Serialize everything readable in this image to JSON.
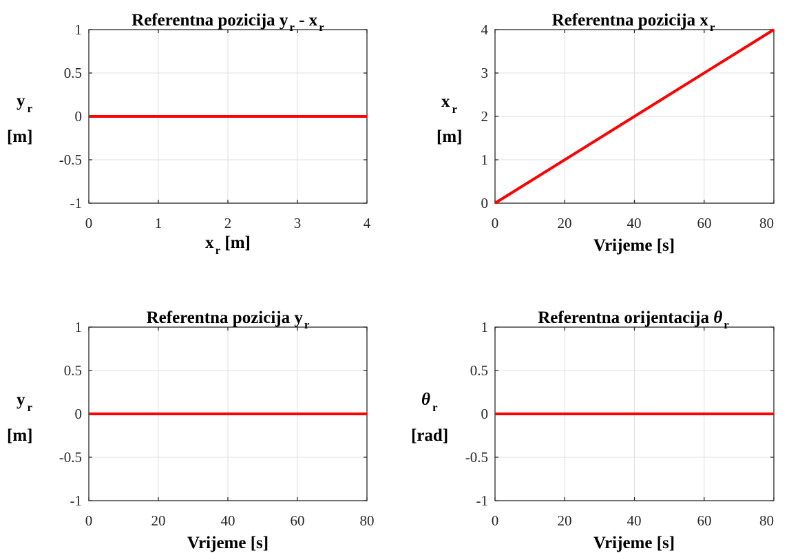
{
  "chart_data": [
    {
      "type": "line",
      "title": {
        "main": "Referentna pozicija y",
        "s1": "r",
        "mid": " - x",
        "s2": "r"
      },
      "xlabel": {
        "main": "x",
        "sub": "r",
        "unit": " [m]"
      },
      "ylabel": {
        "sym": "y",
        "sub": "r",
        "unit": "[m]"
      },
      "xlim": [
        0,
        4
      ],
      "ylim": [
        -1,
        1
      ],
      "xticks": [
        "0",
        "1",
        "2",
        "3",
        "4"
      ],
      "yticks": [
        "-1",
        "-0.5",
        "0",
        "0.5",
        "1"
      ],
      "grid": true,
      "series": [
        {
          "color": "#ff0000",
          "x": [
            0,
            4
          ],
          "y": [
            0,
            0
          ]
        }
      ]
    },
    {
      "type": "line",
      "title": {
        "main": "Referentna pozicija x",
        "s1": "r"
      },
      "xlabel": {
        "main": "Vrijeme [s]"
      },
      "ylabel": {
        "sym": "x",
        "sub": "r",
        "unit": "[m]"
      },
      "xlim": [
        0,
        80
      ],
      "ylim": [
        0,
        4
      ],
      "xticks": [
        "0",
        "20",
        "40",
        "60",
        "80"
      ],
      "yticks": [
        "0",
        "1",
        "2",
        "3",
        "4"
      ],
      "grid": true,
      "series": [
        {
          "color": "#ff0000",
          "x": [
            0,
            80
          ],
          "y": [
            0,
            4
          ]
        }
      ]
    },
    {
      "type": "line",
      "title": {
        "main": "Referentna pozicija y",
        "s1": "r"
      },
      "xlabel": {
        "main": "Vrijeme [s]"
      },
      "ylabel": {
        "sym": "y",
        "sub": "r",
        "unit": "[m]"
      },
      "xlim": [
        0,
        80
      ],
      "ylim": [
        -1,
        1
      ],
      "xticks": [
        "0",
        "20",
        "40",
        "60",
        "80"
      ],
      "yticks": [
        "-1",
        "-0.5",
        "0",
        "0.5",
        "1"
      ],
      "grid": true,
      "series": [
        {
          "color": "#ff0000",
          "x": [
            0,
            80
          ],
          "y": [
            0,
            0
          ]
        }
      ]
    },
    {
      "type": "line",
      "title": {
        "main": "Referentna orijentacija ",
        "greek": "θ",
        "s1": "r"
      },
      "xlabel": {
        "main": "Vrijeme [s]"
      },
      "ylabel": {
        "sym": "θ",
        "sub": "r",
        "unit": "[rad]"
      },
      "xlim": [
        0,
        80
      ],
      "ylim": [
        -1,
        1
      ],
      "xticks": [
        "0",
        "20",
        "40",
        "60",
        "80"
      ],
      "yticks": [
        "-1",
        "-0.5",
        "0",
        "0.5",
        "1"
      ],
      "grid": true,
      "series": [
        {
          "color": "#ff0000",
          "x": [
            0,
            80
          ],
          "y": [
            0,
            0
          ]
        }
      ]
    }
  ]
}
